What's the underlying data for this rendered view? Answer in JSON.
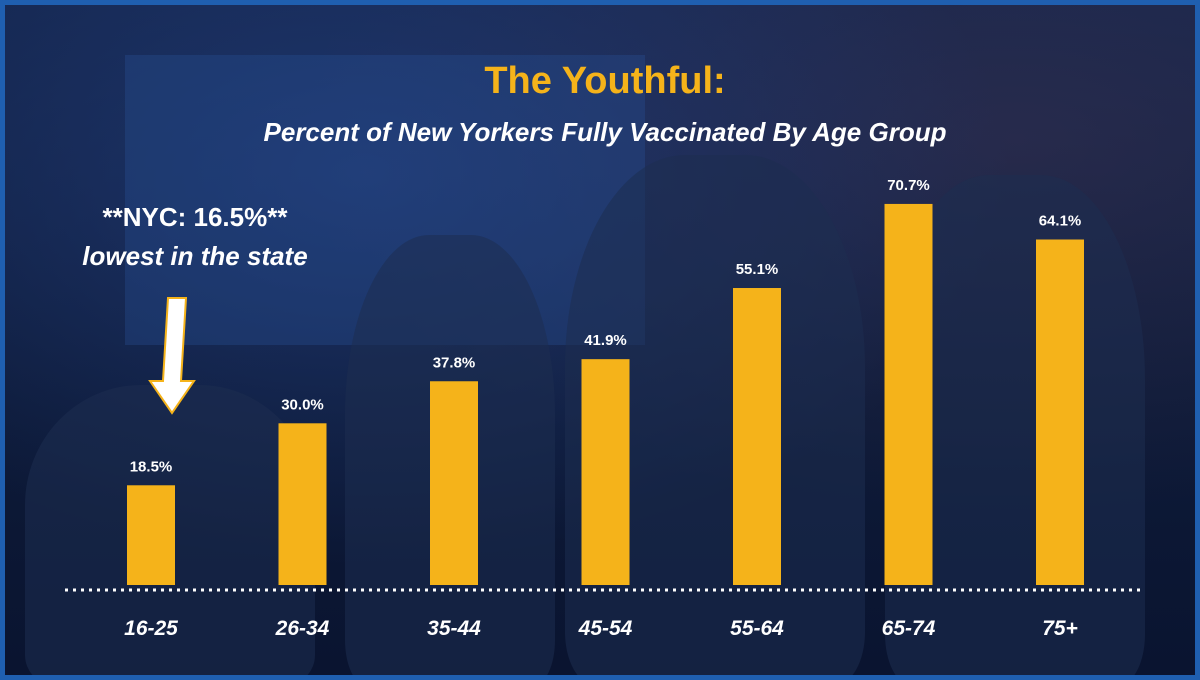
{
  "chart_data": {
    "type": "bar",
    "title": "The Youthful:",
    "subtitle": "Percent of New Yorkers Fully Vaccinated By Age Group",
    "categories": [
      "16-25",
      "26-34",
      "35-44",
      "45-54",
      "55-64",
      "65-74",
      "75+"
    ],
    "values": [
      18.5,
      30.0,
      37.8,
      41.9,
      55.1,
      70.7,
      64.1
    ],
    "value_labels": [
      "18.5%",
      "30.0%",
      "37.8%",
      "41.9%",
      "55.1%",
      "70.7%",
      "64.1%"
    ],
    "ylim": [
      0,
      100
    ],
    "grid": false,
    "bar_color": "#f5b31a",
    "baseline": "dotted",
    "annotation": {
      "line1": "**NYC: 16.5%**",
      "line2": "lowest in the state",
      "target_category": "16-25",
      "arrow": "down-arrow-icon"
    }
  },
  "colors": {
    "accent": "#f5b31a",
    "background": "#0e1c3d",
    "border": "#1f5fb0",
    "text": "#ffffff"
  }
}
